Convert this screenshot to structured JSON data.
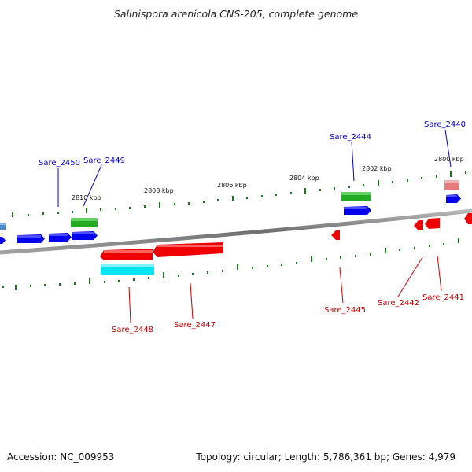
{
  "title": "Salinispora arenicola CNS-205, complete genome",
  "footer": {
    "accession": "Accession: NC_009953",
    "summary": "Topology: circular; Length: 5,786,361 bp; Genes: 4,979"
  },
  "ruler_labels": [
    "2810 kbp",
    "2808 kbp",
    "2806 kbp",
    "2804 kbp",
    "2802 kbp",
    "2800 kbp"
  ],
  "gene_labels": {
    "top": [
      "Sare_2450",
      "Sare_2449",
      "Sare_2444",
      "Sare_2440"
    ],
    "bottom": [
      "Sare_2448",
      "Sare_2447",
      "Sare_2445",
      "Sare_2442",
      "Sare_2441"
    ]
  },
  "colors": {
    "forward_cds": "#0000ee",
    "reverse_cds": "#ee0000",
    "green_feature": "#22aa22",
    "cyan_feature": "#00e5f0",
    "pink_feature": "#f08080",
    "ruler": "#1a7a1a",
    "backbone": "#8a8a8a",
    "label_top": "#0000cc",
    "label_bottom": "#cc0000"
  }
}
